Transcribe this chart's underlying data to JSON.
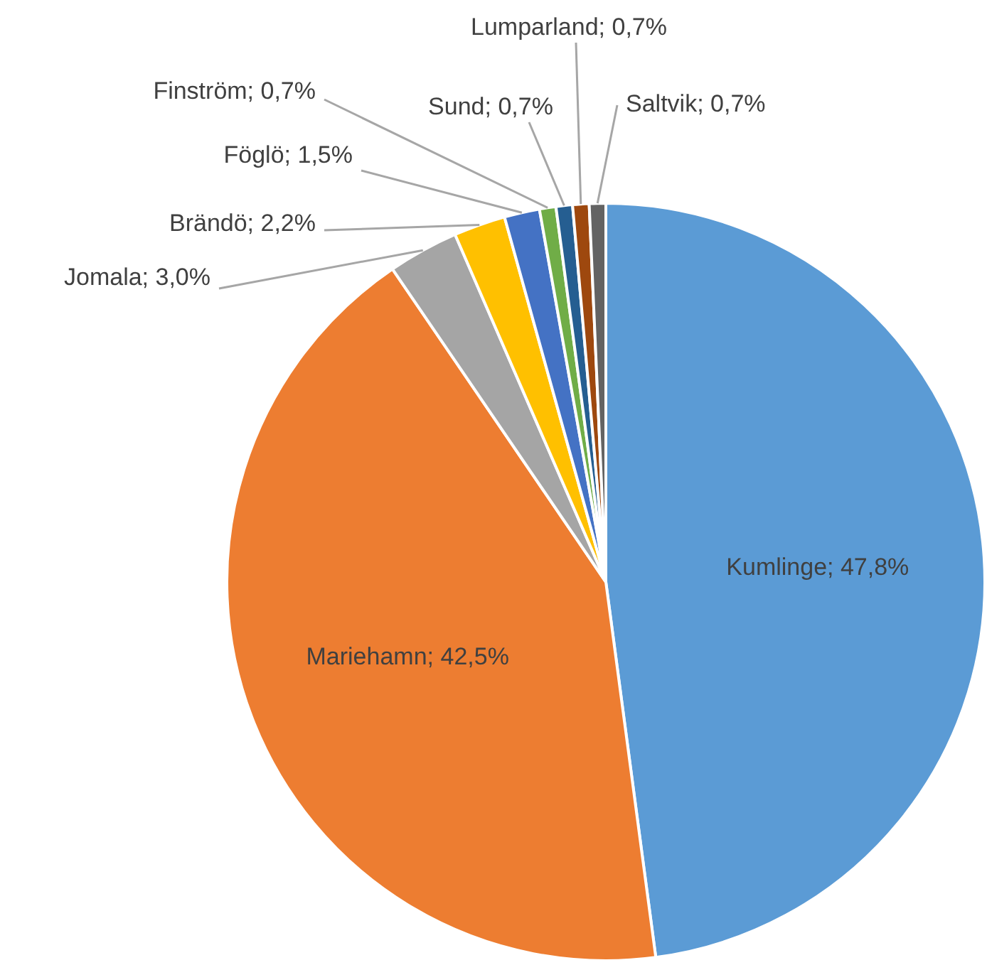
{
  "chart_data": {
    "type": "pie",
    "categories": [
      "Kumlinge",
      "Mariehamn",
      "Jomala",
      "Brändö",
      "Föglö",
      "Finström",
      "Sund",
      "Lumparland",
      "Saltvik"
    ],
    "values": [
      47.8,
      42.5,
      3.0,
      2.2,
      1.5,
      0.7,
      0.7,
      0.7,
      0.7
    ],
    "colors": [
      "#5b9bd5",
      "#ed7d31",
      "#a5a5a5",
      "#ffc000",
      "#4472c4",
      "#70ad47",
      "#255e91",
      "#9e480e",
      "#636363"
    ],
    "value_labels": [
      "47,8%",
      "42,5%",
      "3,0%",
      "2,2%",
      "1,5%",
      "0,7%",
      "0,7%",
      "0,7%",
      "0,7%"
    ],
    "legend": false
  }
}
